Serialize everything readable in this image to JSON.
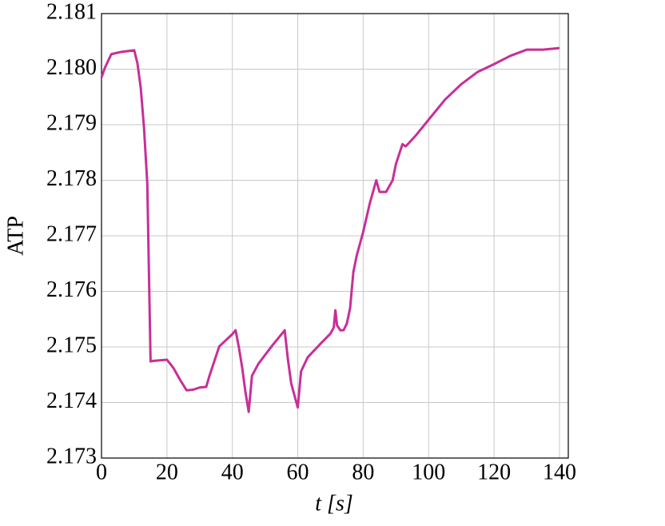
{
  "chart_data": {
    "type": "line",
    "xlabel": "t [s]",
    "ylabel": "ATP",
    "x": [
      0,
      1,
      3,
      6,
      10,
      11,
      12,
      13,
      14,
      15,
      16,
      20,
      22,
      24,
      26,
      28,
      30,
      32,
      33,
      36,
      40,
      41,
      42,
      43,
      44,
      45,
      46,
      48,
      52,
      56,
      57,
      58,
      60,
      61,
      63,
      67,
      70,
      71,
      71.5,
      72,
      73,
      74,
      75,
      76,
      77,
      78,
      80,
      82,
      84,
      85,
      87,
      89,
      90,
      92,
      93,
      96,
      100,
      105,
      110,
      115,
      120,
      125,
      130,
      135,
      140
    ],
    "series": [
      {
        "color": "#c72f98",
        "values": [
          2.17985,
          2.18002,
          2.18027,
          2.18031,
          2.18034,
          2.1801,
          2.17966,
          2.17894,
          2.17794,
          2.17474,
          2.17475,
          2.17477,
          2.17462,
          2.17441,
          2.17422,
          2.17423,
          2.17427,
          2.17428,
          2.17448,
          2.17501,
          2.17523,
          2.1753,
          2.17499,
          2.17463,
          2.17419,
          2.17383,
          2.17448,
          2.1747,
          2.17501,
          2.1753,
          2.17477,
          2.17434,
          2.17391,
          2.17456,
          2.17481,
          2.17506,
          2.17524,
          2.17535,
          2.17566,
          2.17539,
          2.1753,
          2.1753,
          2.17542,
          2.1757,
          2.17635,
          2.17664,
          2.17707,
          2.17758,
          2.178,
          2.17779,
          2.17779,
          2.178,
          2.17829,
          2.17865,
          2.17861,
          2.1788,
          2.17909,
          2.17945,
          2.17973,
          2.17995,
          2.18009,
          2.18024,
          2.18035,
          2.18035,
          2.18038
        ]
      }
    ],
    "xlim": [
      0,
      142.7
    ],
    "xticks": [
      0,
      20,
      40,
      60,
      80,
      100,
      120,
      140
    ],
    "ylim": [
      2.173,
      2.181
    ],
    "yticks": [
      2.173,
      2.174,
      2.175,
      2.176,
      2.177,
      2.178,
      2.179,
      {
        "value": 2.18,
        "label": "2.180"
      },
      2.181
    ],
    "grid": true
  }
}
